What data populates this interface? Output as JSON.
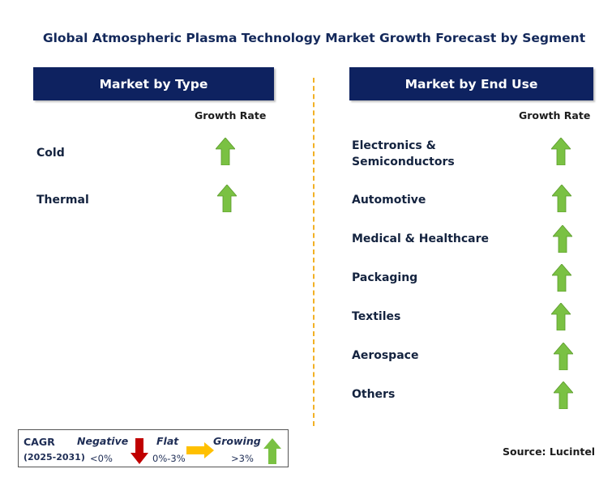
{
  "title": "Global Atmospheric Plasma Technology Market Growth Forecast by Segment",
  "left_panel": {
    "header": "Market by Type",
    "growth_rate_label": "Growth Rate",
    "items": [
      {
        "label": "Cold",
        "trend": "Growing"
      },
      {
        "label": "Thermal",
        "trend": "Growing"
      }
    ]
  },
  "right_panel": {
    "header": "Market by End Use",
    "growth_rate_label": "Growth Rate",
    "items": [
      {
        "label": "Electronics &\nSemiconductors",
        "trend": "Growing"
      },
      {
        "label": "Automotive",
        "trend": "Growing"
      },
      {
        "label": "Medical & Healthcare",
        "trend": "Growing"
      },
      {
        "label": "Packaging",
        "trend": "Growing"
      },
      {
        "label": "Textiles",
        "trend": "Growing"
      },
      {
        "label": "Aerospace",
        "trend": "Growing"
      },
      {
        "label": "Others",
        "trend": "Growing"
      }
    ]
  },
  "legend": {
    "cagr_label": "CAGR",
    "period": "(2025-2031)",
    "negative": {
      "label": "Negative",
      "range": "<0%",
      "icon": "down-arrow-icon",
      "color": "#c00000"
    },
    "flat": {
      "label": "Flat",
      "range": "0%-3%",
      "icon": "right-arrow-icon",
      "color": "#ffc000"
    },
    "growing": {
      "label": "Growing",
      "range": ">3%",
      "icon": "up-arrow-icon",
      "color": "#7ac143"
    }
  },
  "source": "Source: Lucintel",
  "colors": {
    "header_bg": "#0e2260",
    "divider": "#f2b125",
    "growth_arrow": "#7ac143"
  }
}
